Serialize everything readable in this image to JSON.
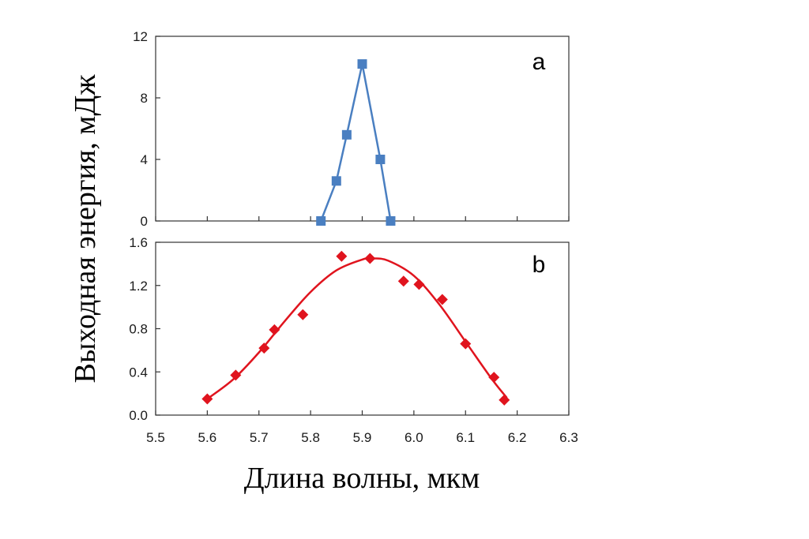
{
  "chart_data": [
    {
      "type": "line",
      "panel_label": "a",
      "ylim": [
        0,
        12
      ],
      "yticks": [
        "0",
        "4",
        "8",
        "12"
      ],
      "xlim": [
        5.5,
        6.3
      ],
      "grid": false,
      "series": [
        {
          "color": "#4a7fc1",
          "marker": "square",
          "x": [
            5.82,
            5.85,
            5.87,
            5.9,
            5.935,
            5.955
          ],
          "y": [
            0,
            2.6,
            5.6,
            10.2,
            4.0,
            0
          ]
        }
      ]
    },
    {
      "type": "scatter",
      "panel_label": "b",
      "ylim": [
        0,
        1.6
      ],
      "yticks": [
        "0.0",
        "0.4",
        "0.8",
        "1.2",
        "1.6"
      ],
      "xlim": [
        5.5,
        6.3
      ],
      "xticks": [
        "5.5",
        "5.6",
        "5.7",
        "5.8",
        "5.9",
        "6.0",
        "6.1",
        "6.2",
        "6.3"
      ],
      "grid": false,
      "series": [
        {
          "color": "#e0141e",
          "marker": "diamond",
          "x": [
            5.6,
            5.655,
            5.71,
            5.73,
            5.785,
            5.86,
            5.915,
            5.98,
            6.01,
            6.055,
            6.1,
            6.155,
            6.175
          ],
          "y": [
            0.15,
            0.37,
            0.62,
            0.79,
            0.93,
            1.47,
            1.45,
            1.24,
            1.21,
            1.07,
            0.66,
            0.35,
            0.14
          ]
        }
      ],
      "fit_curve": {
        "color": "#e0141e",
        "x": [
          5.6,
          5.65,
          5.7,
          5.75,
          5.8,
          5.85,
          5.9,
          5.92,
          5.95,
          6.0,
          6.05,
          6.1,
          6.15,
          6.18
        ],
        "y": [
          0.15,
          0.33,
          0.58,
          0.87,
          1.14,
          1.34,
          1.44,
          1.45,
          1.43,
          1.29,
          1.02,
          0.68,
          0.34,
          0.16
        ]
      }
    }
  ],
  "ylabel": "Выходная энергия, мДж",
  "xlabel": "Длина волны, мкм"
}
